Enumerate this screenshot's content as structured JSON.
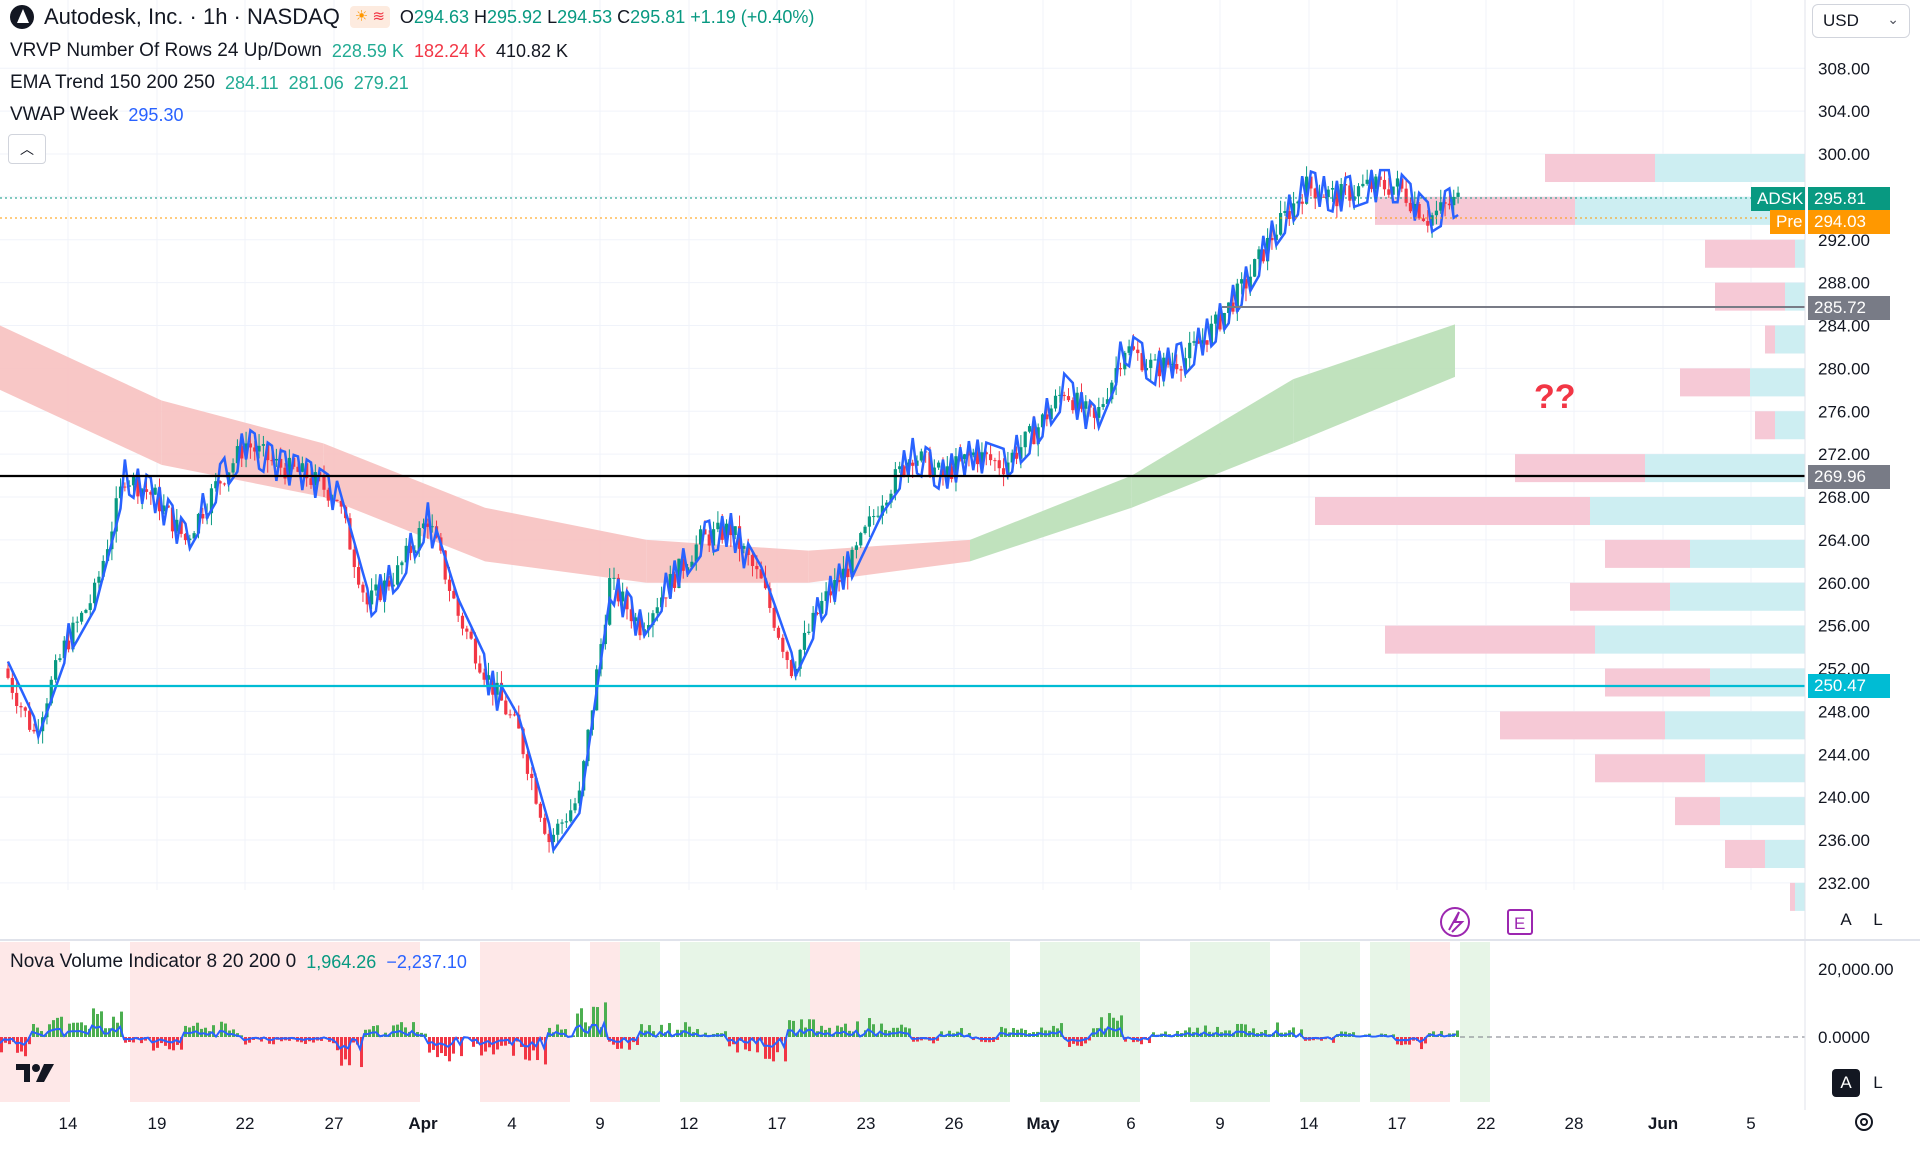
{
  "header": {
    "symbol_title": "Autodesk, Inc. · 1h · NASDAQ",
    "ohlc": {
      "o_label": "O",
      "o": "294.63",
      "h_label": "H",
      "h": "295.92",
      "l_label": "L",
      "l": "294.53",
      "c_label": "C",
      "c": "295.81",
      "change": "+1.19 (+0.40%)"
    }
  },
  "indicators": {
    "vrvp": {
      "name": "VRVP Number Of Rows 24 Up/Down",
      "v1": "228.59 K",
      "v2": "182.24 K",
      "v3": "410.82 K"
    },
    "ema": {
      "name": "EMA Trend 150 200 250",
      "v1": "284.11",
      "v2": "281.06",
      "v3": "279.21"
    },
    "vwap": {
      "name": "VWAP Week",
      "v1": "295.30"
    },
    "nova": {
      "name": "Nova Volume Indicator 8 20 200 0",
      "v1": "1,964.26",
      "v2": "−2,237.10"
    }
  },
  "currency": "USD",
  "annotation_text": "??",
  "price_axis": [
    "308.00",
    "304.00",
    "300.00",
    "296.00",
    "292.00",
    "288.00",
    "284.00",
    "280.00",
    "276.00",
    "272.00",
    "268.00",
    "264.00",
    "260.00",
    "256.00",
    "252.00",
    "248.00",
    "244.00",
    "240.00",
    "236.00",
    "232.00"
  ],
  "price_tags": {
    "symbol": "ADSK",
    "last": "295.81",
    "pre_label": "Pre",
    "pre": "294.03",
    "level1": "285.72",
    "level2": "269.96",
    "level3": "250.47"
  },
  "volume_axis": [
    "20,000.00",
    "0.0000"
  ],
  "time_axis": [
    "14",
    "19",
    "22",
    "27",
    "Apr",
    "4",
    "9",
    "12",
    "17",
    "23",
    "26",
    "May",
    "6",
    "9",
    "14",
    "17",
    "22",
    "28",
    "Jun",
    "5"
  ],
  "controls": {
    "auto": "A",
    "log": "L",
    "earnings": "E"
  },
  "colors": {
    "up": "#089981",
    "down": "#f23645",
    "vwap": "#2962ff",
    "ema_bear": "#f7c1c0",
    "ema_bull": "#b9dfb6",
    "vp_up": "#cdeef2",
    "vp_down": "#f6c9d6",
    "hline_cyan": "#00bcd4",
    "hline_black": "#000000"
  },
  "chart_data": {
    "type": "candlestick",
    "ylim": [
      232,
      308
    ],
    "horizontal_levels": [
      285.72,
      269.96,
      250.47
    ],
    "close_path": [
      {
        "x": "Mar 13",
        "c": 252
      },
      {
        "x": "Mar 14",
        "c": 246
      },
      {
        "x": "Mar 15",
        "c": 254
      },
      {
        "x": "Mar 18",
        "c": 259
      },
      {
        "x": "Mar 19",
        "c": 270
      },
      {
        "x": "Mar 20",
        "c": 268
      },
      {
        "x": "Mar 21",
        "c": 264
      },
      {
        "x": "Mar 22",
        "c": 269
      },
      {
        "x": "Mar 25",
        "c": 273
      },
      {
        "x": "Mar 26",
        "c": 271
      },
      {
        "x": "Mar 27",
        "c": 270
      },
      {
        "x": "Mar 28",
        "c": 268
      },
      {
        "x": "Mar 29",
        "c": 258
      },
      {
        "x": "Apr 1",
        "c": 261
      },
      {
        "x": "Apr 2",
        "c": 266
      },
      {
        "x": "Apr 3",
        "c": 257
      },
      {
        "x": "Apr 4",
        "c": 251
      },
      {
        "x": "Apr 5",
        "c": 246
      },
      {
        "x": "Apr 8",
        "c": 236
      },
      {
        "x": "Apr 9",
        "c": 240
      },
      {
        "x": "Apr 10",
        "c": 260
      },
      {
        "x": "Apr 11",
        "c": 256
      },
      {
        "x": "Apr 12",
        "c": 260
      },
      {
        "x": "Apr 15",
        "c": 264
      },
      {
        "x": "Apr 16",
        "c": 265
      },
      {
        "x": "Apr 17",
        "c": 260
      },
      {
        "x": "Apr 18",
        "c": 252
      },
      {
        "x": "Apr 21",
        "c": 258
      },
      {
        "x": "Apr 22",
        "c": 262
      },
      {
        "x": "Apr 23",
        "c": 268
      },
      {
        "x": "Apr 24",
        "c": 272
      },
      {
        "x": "Apr 25",
        "c": 270
      },
      {
        "x": "Apr 28",
        "c": 272
      },
      {
        "x": "Apr 29",
        "c": 271
      },
      {
        "x": "Apr 30",
        "c": 274
      },
      {
        "x": "May 1",
        "c": 278
      },
      {
        "x": "May 2",
        "c": 275
      },
      {
        "x": "May 5",
        "c": 282
      },
      {
        "x": "May 6",
        "c": 280
      },
      {
        "x": "May 7",
        "c": 281
      },
      {
        "x": "May 8",
        "c": 284
      },
      {
        "x": "May 9",
        "c": 288
      },
      {
        "x": "May 12",
        "c": 293
      },
      {
        "x": "May 13",
        "c": 297
      },
      {
        "x": "May 14",
        "c": 296
      },
      {
        "x": "May 15",
        "c": 297
      },
      {
        "x": "May 16",
        "c": 297
      },
      {
        "x": "May 19",
        "c": 294
      },
      {
        "x": "May 20",
        "c": 295.81
      }
    ],
    "ema_cloud": [
      {
        "x": "Mar 13",
        "upper": 284,
        "lower": 278
      },
      {
        "x": "Mar 21",
        "upper": 277,
        "lower": 271
      },
      {
        "x": "Apr 1",
        "upper": 273,
        "lower": 268
      },
      {
        "x": "Apr 9",
        "upper": 267,
        "lower": 262
      },
      {
        "x": "Apr 17",
        "upper": 264,
        "lower": 260
      },
      {
        "x": "Apr 23",
        "upper": 263,
        "lower": 260
      },
      {
        "x": "Apr 30",
        "upper": 264,
        "lower": 262
      },
      {
        "x": "May 7",
        "upper": 270,
        "lower": 267
      },
      {
        "x": "May 14",
        "upper": 279,
        "lower": 273
      },
      {
        "x": "May 20",
        "upper": 284.11,
        "lower": 279.21
      }
    ],
    "volume_profile": [
      {
        "price": 298,
        "up": 150,
        "down": 110
      },
      {
        "price": 294,
        "up": 230,
        "down": 200
      },
      {
        "price": 290,
        "up": 10,
        "down": 90
      },
      {
        "price": 286,
        "up": 20,
        "down": 70
      },
      {
        "price": 282,
        "up": 30,
        "down": 10
      },
      {
        "price": 278,
        "up": 55,
        "down": 70
      },
      {
        "price": 274,
        "up": 30,
        "down": 20
      },
      {
        "price": 270,
        "up": 160,
        "down": 130
      },
      {
        "price": 266,
        "up": 215,
        "down": 275
      },
      {
        "price": 262,
        "up": 115,
        "down": 85
      },
      {
        "price": 258,
        "up": 135,
        "down": 100
      },
      {
        "price": 254,
        "up": 210,
        "down": 210
      },
      {
        "price": 250,
        "up": 95,
        "down": 105
      },
      {
        "price": 246,
        "up": 140,
        "down": 165
      },
      {
        "price": 242,
        "up": 100,
        "down": 110
      },
      {
        "price": 238,
        "up": 85,
        "down": 45
      },
      {
        "price": 234,
        "up": 40,
        "down": 40
      },
      {
        "price": 230,
        "up": 10,
        "down": 5
      }
    ]
  }
}
